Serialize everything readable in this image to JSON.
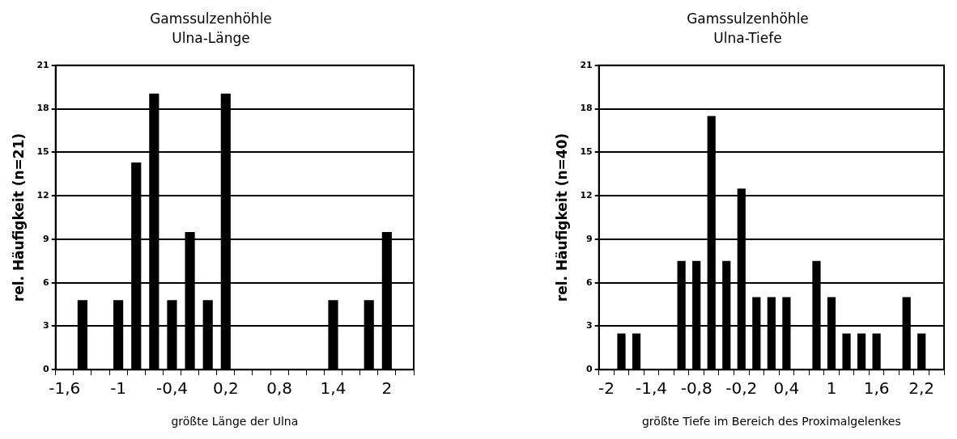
{
  "chart_data": [
    {
      "type": "bar",
      "title": "Gamssulzenhöhle",
      "subtitle": "Ulna-Länge",
      "xlabel": "größte Länge der Ulna",
      "ylabel": "rel. Häufigkeit (n=21)",
      "categories": [
        "-1,6",
        null,
        null,
        "-1",
        null,
        null,
        "-0,4",
        null,
        null,
        "0,2",
        null,
        null,
        "0,8",
        null,
        null,
        "1,4",
        null,
        null,
        "2",
        null
      ],
      "values": [
        0,
        4.8,
        0,
        4.8,
        14.3,
        19.05,
        4.8,
        9.5,
        4.8,
        19.05,
        0,
        0,
        0,
        0,
        0,
        4.8,
        0,
        4.8,
        9.5,
        0
      ],
      "color": "#000000",
      "ylim": [
        0,
        21
      ],
      "yticks": [
        0,
        3,
        6,
        9,
        12,
        15,
        18,
        21
      ],
      "grid": "y"
    },
    {
      "type": "bar",
      "title": "Gamssulzenhöhle",
      "subtitle": "Ulna-Tiefe",
      "xlabel": "größte Tiefe im Bereich des Proximalgelenkes",
      "ylabel": "rel. Häufigkeit (n=40)",
      "categories": [
        "-2",
        null,
        null,
        "-1,4",
        null,
        null,
        "-0,8",
        null,
        null,
        "-0,2",
        null,
        null,
        "0,4",
        null,
        null,
        "1",
        null,
        null,
        "1,6",
        null,
        null,
        "2,2",
        null
      ],
      "values": [
        0,
        2.5,
        2.5,
        0,
        0,
        7.5,
        7.5,
        17.5,
        7.5,
        12.5,
        5,
        5,
        5,
        0,
        7.5,
        5,
        2.5,
        2.5,
        2.5,
        0,
        5,
        2.5,
        0
      ],
      "color": "#000000",
      "ylim": [
        0,
        21
      ],
      "yticks": [
        0,
        3,
        6,
        9,
        12,
        15,
        18,
        21
      ],
      "grid": "y"
    }
  ]
}
